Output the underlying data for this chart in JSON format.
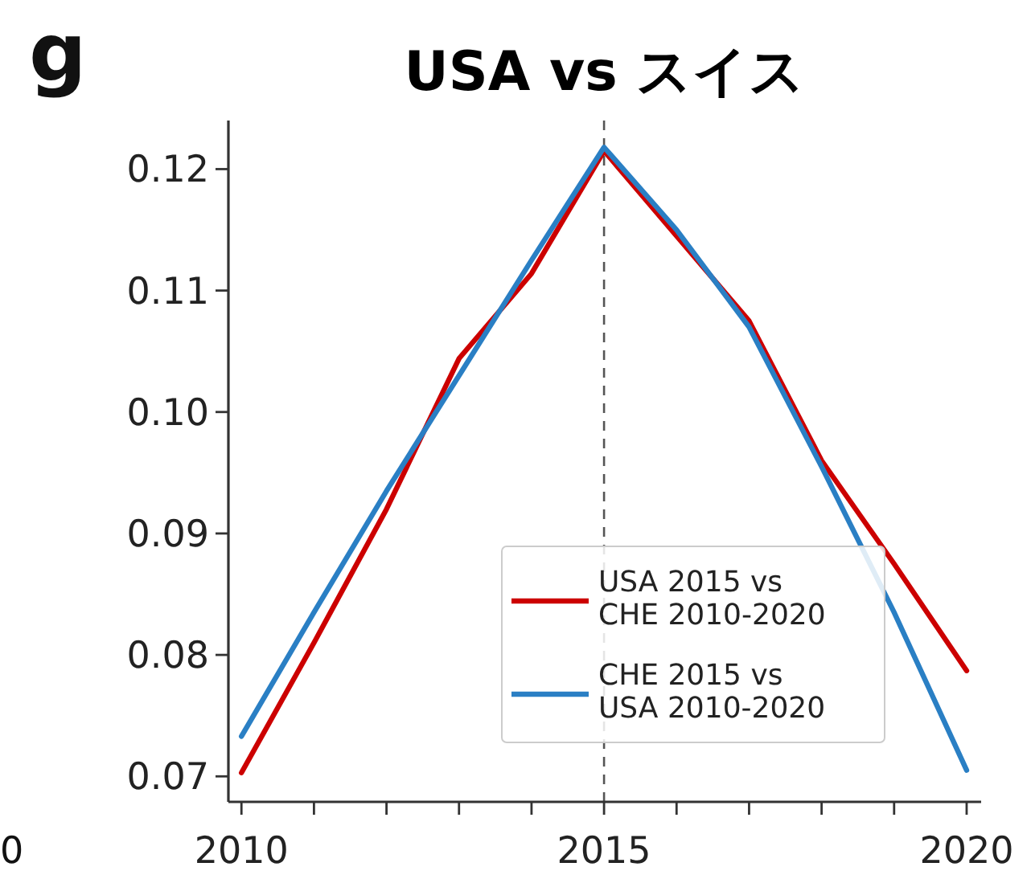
{
  "chart_data": {
    "type": "line",
    "title": "USA vs スイス",
    "x": [
      2010,
      2011,
      2012,
      2013,
      2014,
      2015,
      2016,
      2017,
      2018,
      2019,
      2020
    ],
    "series": [
      {
        "name": "USA 2015 vs\nCHE 2010-2020",
        "color": "#cc0000",
        "values": [
          0.0703,
          0.081,
          0.092,
          0.1044,
          0.1114,
          0.1215,
          0.1145,
          0.1075,
          0.096,
          0.0875,
          0.0787
        ]
      },
      {
        "name": "CHE 2015 vs\nUSA 2010-2020",
        "color": "#2a7fc4",
        "values": [
          0.0733,
          0.0835,
          0.0935,
          0.103,
          0.1125,
          0.1218,
          0.115,
          0.107,
          0.0955,
          0.0835,
          0.0705
        ]
      }
    ],
    "xlim": [
      2009.82,
      2020.2
    ],
    "ylim": [
      0.0679,
      0.124
    ],
    "xticks": [
      2010,
      {
        "value": 2011,
        "label": null
      },
      {
        "value": 2012,
        "label": null
      },
      {
        "value": 2013,
        "label": null
      },
      {
        "value": 2014,
        "label": null
      },
      2015,
      {
        "value": 2016,
        "label": null
      },
      {
        "value": 2017,
        "label": null
      },
      {
        "value": 2018,
        "label": null
      },
      {
        "value": 2019,
        "label": null
      },
      2020
    ],
    "yticks": [
      {
        "value": 0.07,
        "label": "0.07"
      },
      {
        "value": 0.08,
        "label": "0.08"
      },
      {
        "value": 0.09,
        "label": "0.09"
      },
      {
        "value": 0.1,
        "label": "0.10"
      },
      {
        "value": 0.11,
        "label": "0.11"
      },
      {
        "value": 0.12,
        "label": "0.12"
      }
    ],
    "ref_lines": [
      {
        "axis": "x",
        "value": 2015,
        "color": "#555555",
        "line_style": "dashed"
      }
    ],
    "annotations": [
      "g",
      "0"
    ],
    "grid": false,
    "legend": "bottom right",
    "marker": "none",
    "line_style": "solid"
  }
}
